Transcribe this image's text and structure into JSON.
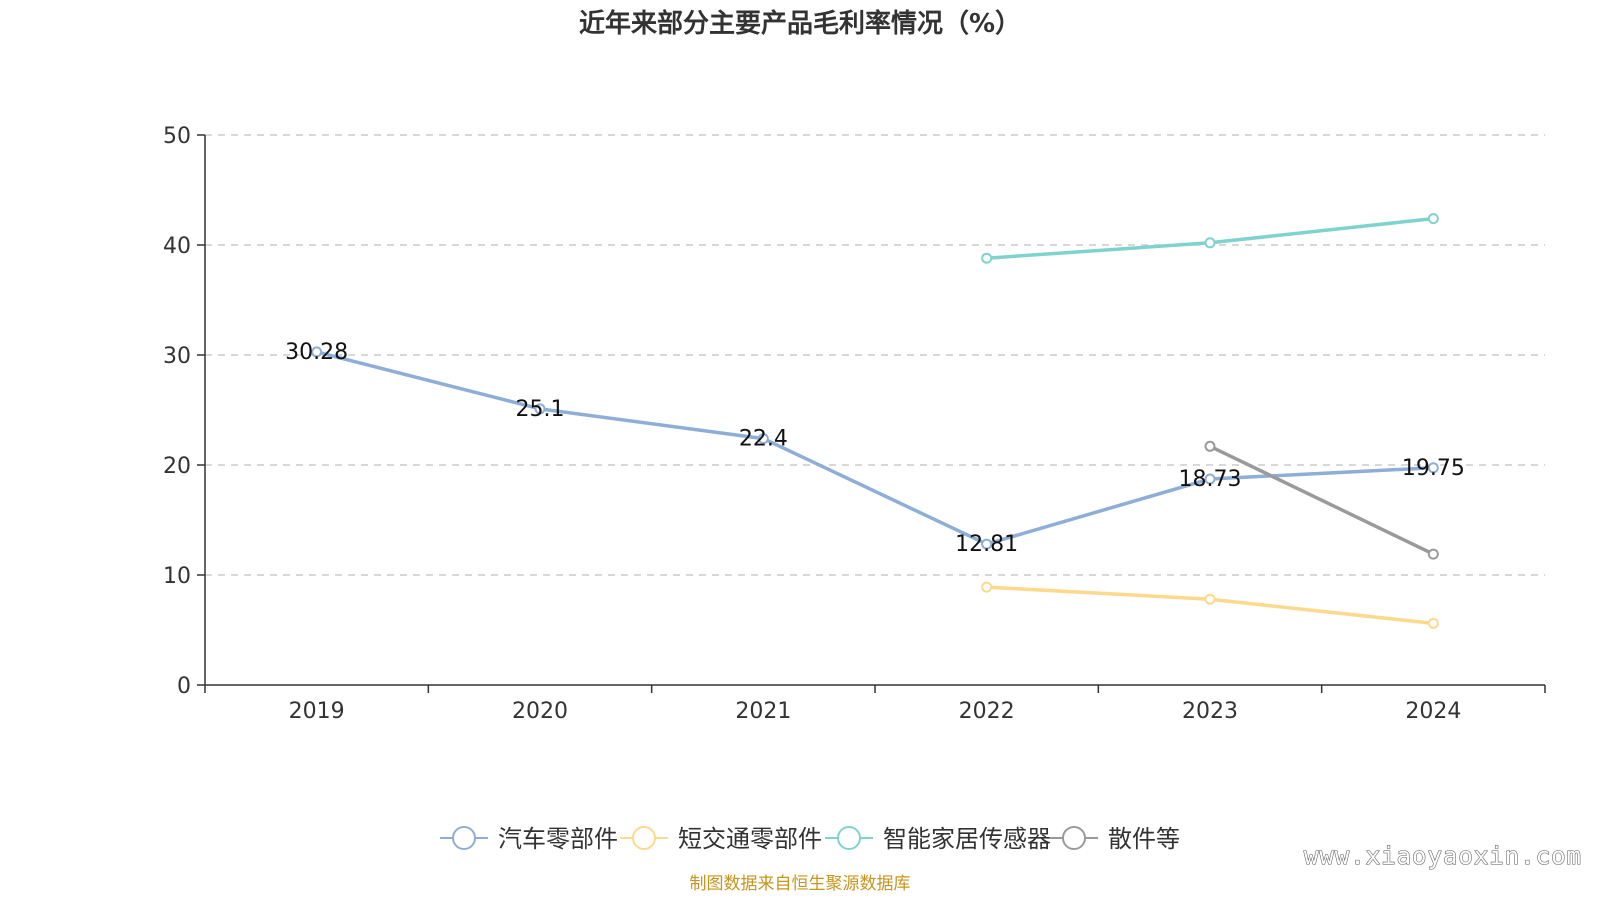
{
  "chart_data": {
    "type": "line",
    "title": "近年来部分主要产品毛利率情况（%）",
    "categories": [
      "2019",
      "2020",
      "2021",
      "2022",
      "2023",
      "2024"
    ],
    "ylim": [
      0,
      50
    ],
    "yticks": [
      0,
      10,
      20,
      30,
      40,
      50
    ],
    "grid": true,
    "legend_position": "bottom-center",
    "series": [
      {
        "name": "汽车零部件",
        "color": "#8eaed7",
        "values": [
          30.28,
          25.1,
          22.4,
          12.81,
          18.73,
          19.75
        ],
        "labels": [
          "30.28",
          "25.1",
          "22.4",
          "12.81",
          "18.73",
          "19.75"
        ]
      },
      {
        "name": "短交通零部件",
        "color": "#fcd98d",
        "values": [
          null,
          null,
          null,
          8.9,
          7.8,
          5.6
        ],
        "labels": []
      },
      {
        "name": "智能家居传感器",
        "color": "#7fd3cf",
        "values": [
          null,
          null,
          null,
          38.8,
          40.2,
          42.4
        ],
        "labels": []
      },
      {
        "name": "散件等",
        "color": "#9a9a9a",
        "values": [
          null,
          null,
          null,
          null,
          21.7,
          11.9
        ],
        "labels": []
      }
    ]
  },
  "footer": {
    "source": "制图数据来自恒生聚源数据库",
    "watermark": "www.xiaoyaoxin.com"
  }
}
